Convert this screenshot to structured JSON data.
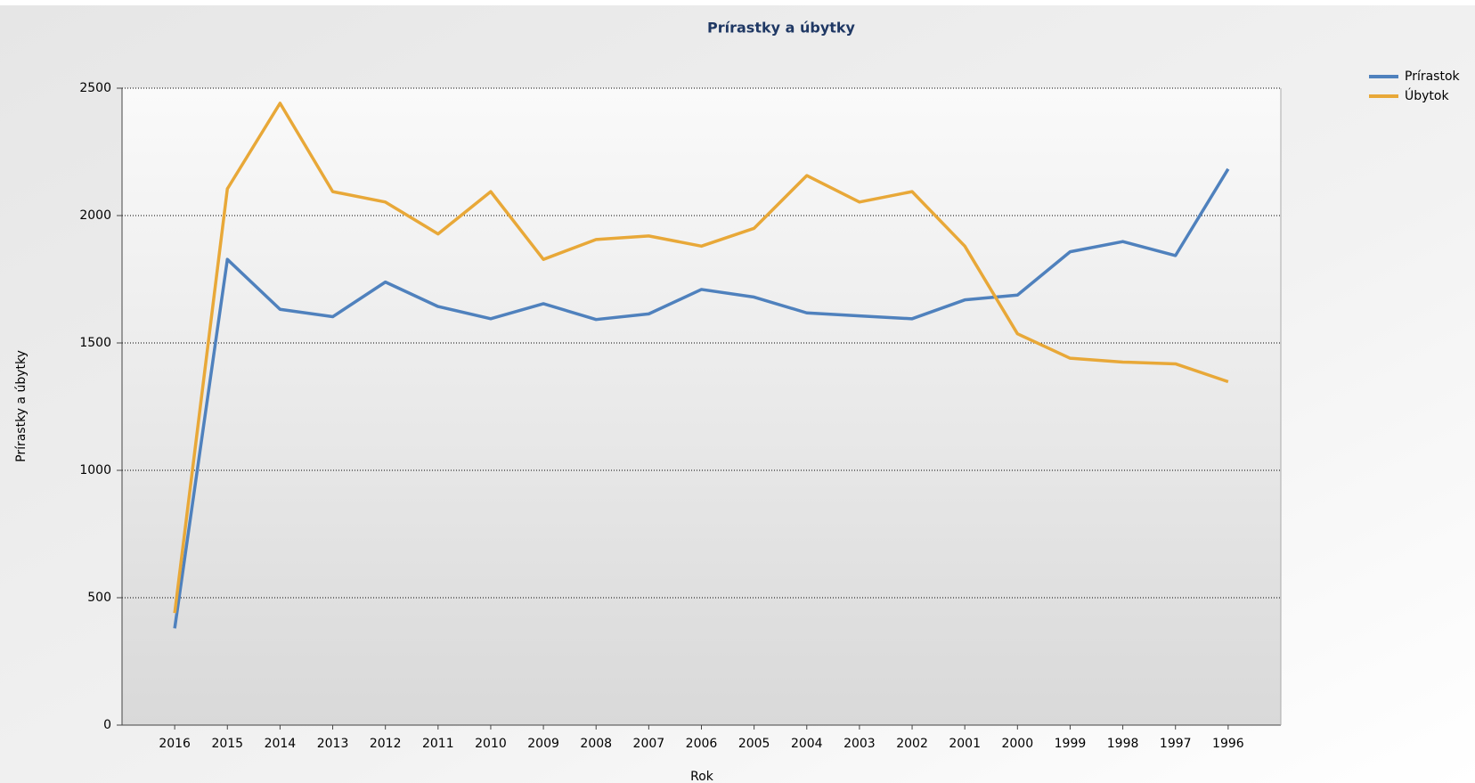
{
  "chart_data": {
    "type": "line",
    "title": "Prírastky a úbytky",
    "x_label": "Rok",
    "y_label": "Prírastky a úbytky",
    "categories": [
      "2016",
      "2015",
      "2014",
      "2013",
      "2012",
      "2011",
      "2010",
      "2009",
      "2008",
      "2007",
      "2006",
      "2005",
      "2004",
      "2003",
      "2002",
      "2001",
      "2000",
      "1999",
      "1998",
      "1997",
      "1996"
    ],
    "series": [
      {
        "name": "Prírastok",
        "color": "#4f81bd",
        "values": [
          380,
          1828,
          1632,
          1603,
          1739,
          1643,
          1595,
          1654,
          1592,
          1614,
          1710,
          1680,
          1618,
          1606,
          1595,
          1669,
          1688,
          1858,
          1898,
          1843,
          2183
        ]
      },
      {
        "name": "Úbytok",
        "color": "#e8a838",
        "values": [
          440,
          2105,
          2441,
          2094,
          2053,
          1928,
          2094,
          1828,
          1906,
          1920,
          1880,
          1950,
          2157,
          2053,
          2094,
          1880,
          1536,
          1440,
          1425,
          1418,
          1348
        ]
      }
    ],
    "ylim": [
      0,
      2500
    ],
    "yticks": [
      0,
      500,
      1000,
      1500,
      2000,
      2500
    ],
    "grid": true,
    "legend": "top-right"
  }
}
